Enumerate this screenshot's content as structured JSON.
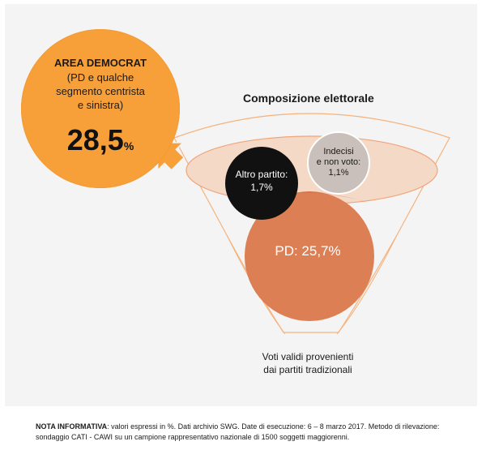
{
  "area": {
    "title": "AREA DEMOCRAT",
    "subtitle": "(PD e qualche\nsegmento centrista\ne sinistra)",
    "value": "28,5",
    "unit": "%"
  },
  "composition": {
    "title": "Composizione elettorale",
    "altro_partito": "Altro partito:\n1,7%",
    "indecisi": "Indecisi\ne non voto:\n1,1%",
    "pd": "PD: 25,7%",
    "voti_validi": "Voti validi provenienti\ndai partiti tradizionali"
  },
  "note": {
    "label": "NOTA INFORMATIVA",
    "text": ": valori espressi in %. Dati archivio SWG. Date di esecuzione: 6 – 8 marzo 2017. Metodo di rilevazione: sondaggio CATI - CAWI su un campione rappresentativo nazionale di 1500 soggetti maggiorenni."
  },
  "colors": {
    "orange": "#f7a03a",
    "pd_orange": "#dd7f55",
    "black": "#111111",
    "grey": "#c9c0bc",
    "funnel_stroke": "#f5b27c",
    "ellipse_fill": "#f5d9c7"
  }
}
